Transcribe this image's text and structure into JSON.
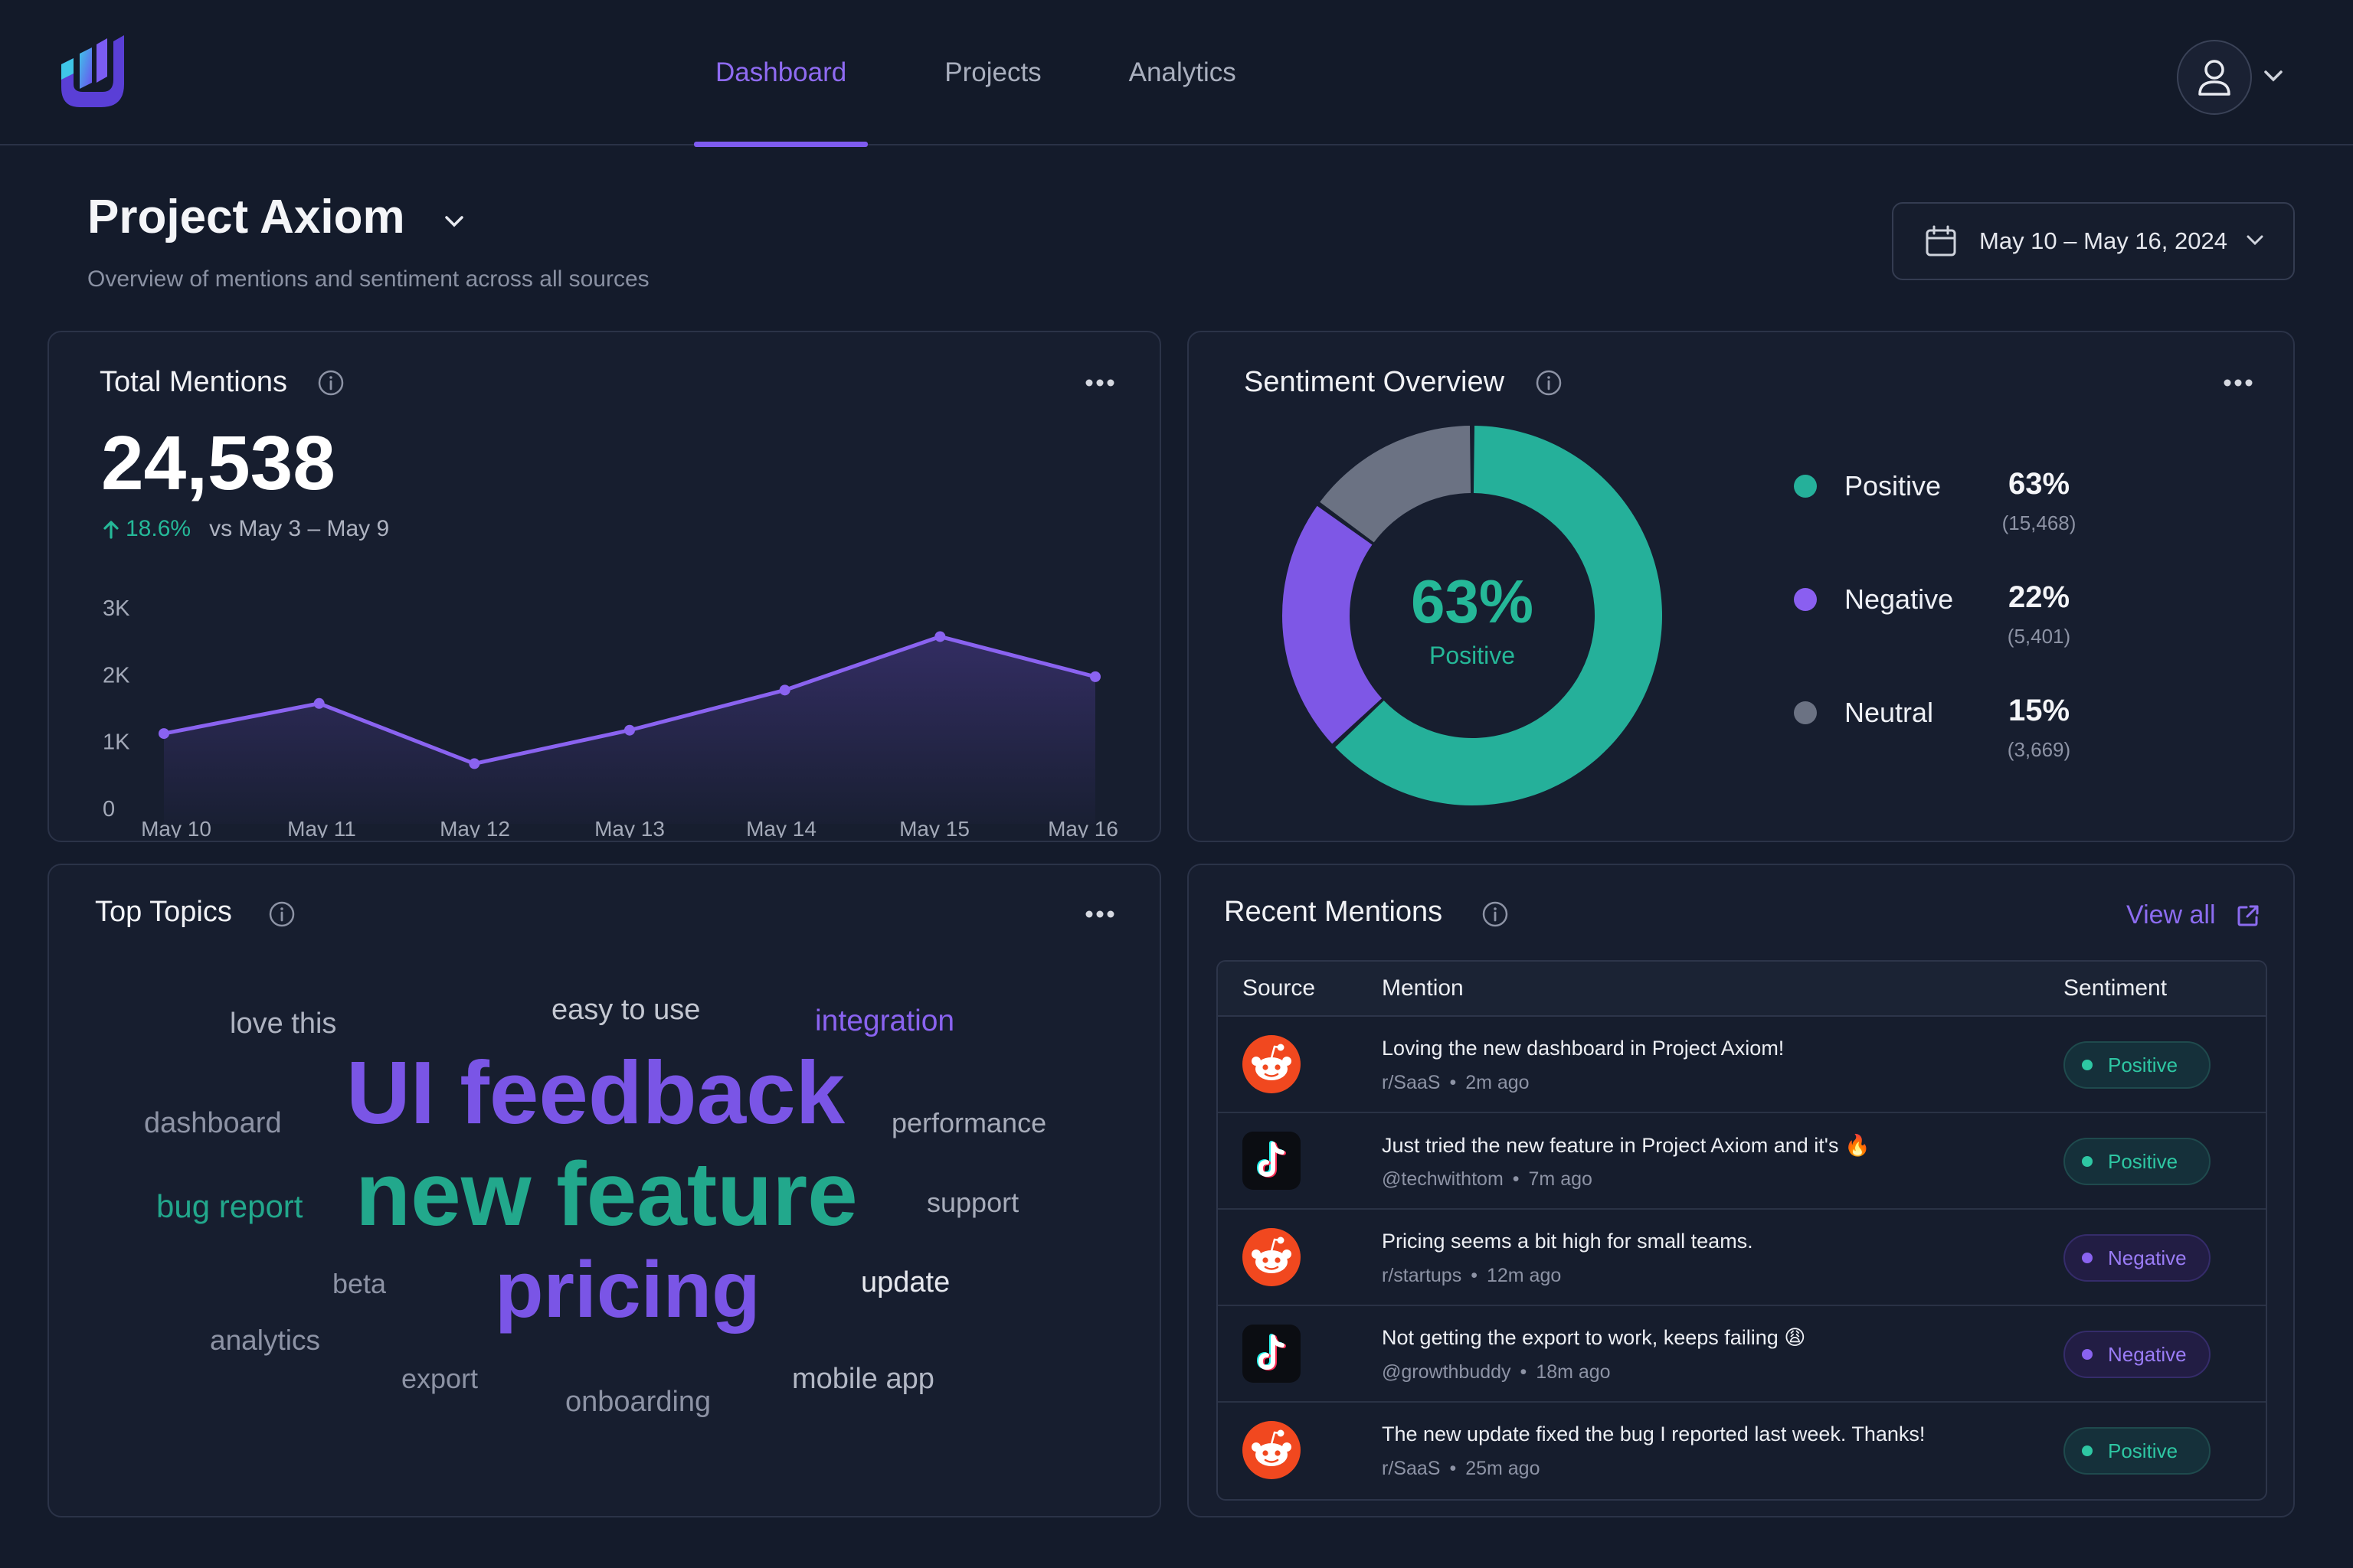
{
  "nav": {
    "items": [
      {
        "label": "Dashboard",
        "active": true
      },
      {
        "label": "Projects",
        "active": false
      },
      {
        "label": "Analytics",
        "active": false
      }
    ]
  },
  "header": {
    "title": "Project Axiom",
    "subtitle": "Overview of mentions and sentiment across all sources",
    "date_range": "May 10 – May 16, 2024"
  },
  "total_mentions": {
    "title": "Total Mentions",
    "value": "24,538",
    "delta": "18.6%",
    "comparison": "vs May 3 – May 9"
  },
  "chart_data": {
    "type": "area",
    "categories": [
      "May 10",
      "May 11",
      "May 12",
      "May 13",
      "May 14",
      "May 15",
      "May 16"
    ],
    "values": [
      1350,
      1800,
      900,
      1400,
      2000,
      2800,
      2200
    ],
    "ylim": [
      0,
      3000
    ],
    "yticks": [
      "0",
      "1K",
      "2K",
      "3K"
    ],
    "grid": false,
    "color": "#8a63f0"
  },
  "sentiment": {
    "title": "Sentiment Overview",
    "center_pct": "63%",
    "center_label": "Positive",
    "items": [
      {
        "name": "Positive",
        "pct": "63%",
        "count": "(15,468)",
        "value": 63,
        "color": "#25b09a"
      },
      {
        "name": "Negative",
        "pct": "22%",
        "count": "(5,401)",
        "value": 22,
        "color": "#7e57e6"
      },
      {
        "name": "Neutral",
        "pct": "15%",
        "count": "(3,669)",
        "value": 15,
        "color": "#6b7283"
      }
    ]
  },
  "topics": {
    "title": "Top Topics",
    "words": [
      {
        "text": "love this"
      },
      {
        "text": "easy to use"
      },
      {
        "text": "integration"
      },
      {
        "text": "UI feedback"
      },
      {
        "text": "dashboard"
      },
      {
        "text": "performance"
      },
      {
        "text": "new feature"
      },
      {
        "text": "bug report"
      },
      {
        "text": "support"
      },
      {
        "text": "beta"
      },
      {
        "text": "pricing"
      },
      {
        "text": "update"
      },
      {
        "text": "analytics"
      },
      {
        "text": "export"
      },
      {
        "text": "onboarding"
      },
      {
        "text": "mobile app"
      }
    ]
  },
  "recent": {
    "title": "Recent Mentions",
    "view_all": "View all",
    "columns": {
      "source": "Source",
      "mention": "Mention",
      "sentiment": "Sentiment"
    },
    "rows": [
      {
        "source": "reddit-icon",
        "text": "Loving the new dashboard in Project Axiom!",
        "handle": "r/SaaS",
        "time": "2m ago",
        "sentiment": "Positive"
      },
      {
        "source": "tiktok-icon",
        "text": "Just tried the new feature in Project Axiom and it's 🔥",
        "handle": "@techwithtom",
        "time": "7m ago",
        "sentiment": "Positive"
      },
      {
        "source": "reddit-icon",
        "text": "Pricing seems a bit high for small teams.",
        "handle": "r/startups",
        "time": "12m ago",
        "sentiment": "Negative"
      },
      {
        "source": "tiktok-icon",
        "text": "Not getting the export to work, keeps failing 😩",
        "handle": "@growthbuddy",
        "time": "18m ago",
        "sentiment": "Negative"
      },
      {
        "source": "reddit-icon",
        "text": "The new update fixed the bug I reported last week. Thanks!",
        "handle": "r/SaaS",
        "time": "25m ago",
        "sentiment": "Positive"
      }
    ]
  }
}
